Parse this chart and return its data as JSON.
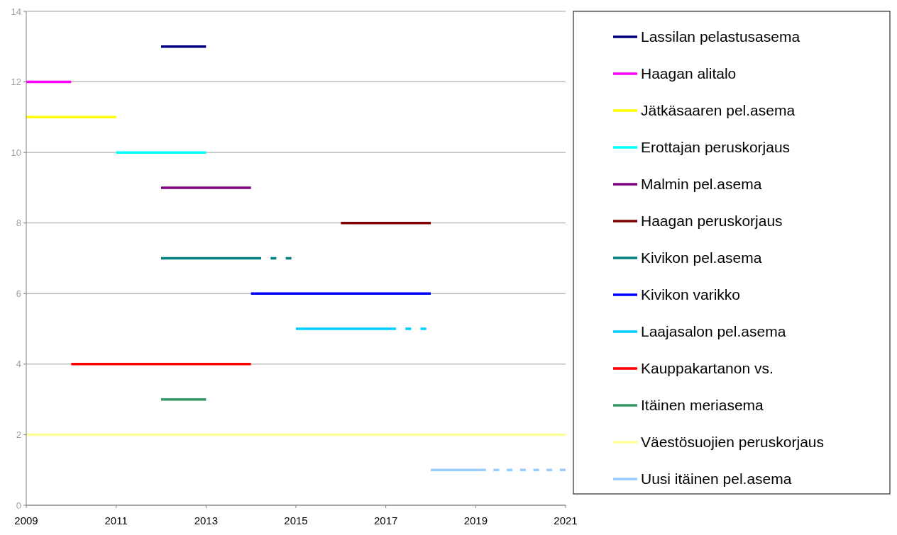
{
  "chart_data": {
    "type": "line",
    "xlim": [
      2009,
      2021
    ],
    "ylim": [
      0,
      14
    ],
    "xticks": [
      2009,
      2011,
      2013,
      2015,
      2017,
      2019,
      2021
    ],
    "yticks": [
      0,
      2,
      4,
      6,
      8,
      10,
      12,
      14
    ],
    "grid": "y",
    "legend": "right",
    "series": [
      {
        "name": "Lassilan pelastusasema",
        "color": "#000080",
        "x": [
          2012,
          2013
        ],
        "values": [
          13,
          13
        ]
      },
      {
        "name": "Haagan alitalo",
        "color": "#ff00ff",
        "x": [
          2009,
          2010
        ],
        "values": [
          12,
          12
        ]
      },
      {
        "name": "Jätkäsaaren pel.asema",
        "color": "#ffff00",
        "x": [
          2009,
          2011
        ],
        "values": [
          11,
          11
        ]
      },
      {
        "name": "Erottajan peruskorjaus",
        "color": "#00ffff",
        "x": [
          2011,
          2013
        ],
        "values": [
          10,
          10
        ]
      },
      {
        "name": "Malmin pel.asema",
        "color": "#800080",
        "x": [
          2012,
          2014
        ],
        "values": [
          9,
          9
        ]
      },
      {
        "name": "Haagan peruskorjaus",
        "color": "#800000",
        "x": [
          2016,
          2018
        ],
        "values": [
          8,
          8
        ]
      },
      {
        "name": "Kivikon pel.asema",
        "color": "#008080",
        "x": [
          2012,
          2014.1
        ],
        "values": [
          7,
          7
        ]
      },
      {
        "color": "#008080",
        "x": [
          2014.1,
          2014.9
        ],
        "values": [
          7,
          7
        ],
        "line_style": "dashed"
      },
      {
        "name": "Kivikon varikko",
        "color": "#0000ff",
        "x": [
          2014,
          2018
        ],
        "values": [
          6,
          6
        ]
      },
      {
        "name": "Laajasalon pel.asema",
        "color": "#00ccff",
        "x": [
          2015,
          2017.1
        ],
        "values": [
          5,
          5
        ]
      },
      {
        "color": "#00ccff",
        "x": [
          2017.1,
          2017.9
        ],
        "values": [
          5,
          5
        ],
        "line_style": "dashed"
      },
      {
        "name": "Kauppakartanon vs.",
        "color": "#ff0000",
        "x": [
          2010,
          2014
        ],
        "values": [
          4,
          4
        ]
      },
      {
        "name": "Itäinen meriasema",
        "color": "#339966",
        "x": [
          2012,
          2013
        ],
        "values": [
          3,
          3
        ]
      },
      {
        "name": "Väestösuojien peruskorjaus",
        "color": "#ffff99",
        "x": [
          2009,
          2021
        ],
        "values": [
          2,
          2
        ]
      },
      {
        "name": "Uusi itäinen pel.asema",
        "color": "#99ccff",
        "x": [
          2018,
          2019.1
        ],
        "values": [
          1,
          1
        ]
      },
      {
        "color": "#99ccff",
        "x": [
          2019.1,
          2021
        ],
        "values": [
          1,
          1
        ],
        "line_style": "dashed"
      }
    ]
  }
}
